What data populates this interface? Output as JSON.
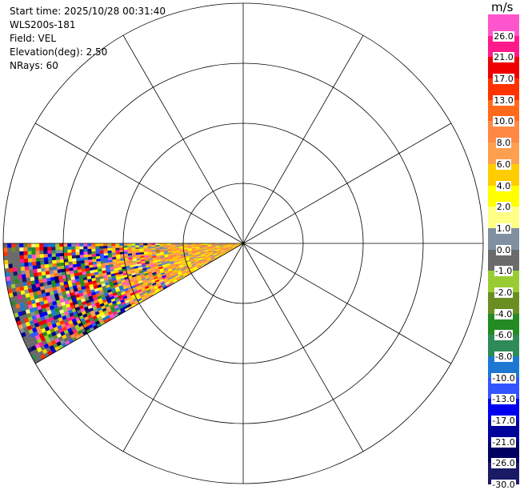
{
  "header": {
    "start_time": "Start time: 2025/10/28 00:31:40",
    "instrument": "WLS200s-181",
    "field": "Field: VEL",
    "elevation": "Elevation(deg): 2.50",
    "nrays": "NRays: 60"
  },
  "colorbar": {
    "unit": "m/s",
    "segments": [
      {
        "label": "26.0",
        "color": "#ff55cc"
      },
      {
        "label": "21.0",
        "color": "#ff1a8c"
      },
      {
        "label": "17.0",
        "color": "#ee0000"
      },
      {
        "label": "13.0",
        "color": "#ff3300"
      },
      {
        "label": "10.0",
        "color": "#ff6a1a"
      },
      {
        "label": "8.0",
        "color": "#ff8844"
      },
      {
        "label": "6.0",
        "color": "#ffa050"
      },
      {
        "label": "4.0",
        "color": "#ffcc00"
      },
      {
        "label": "2.0",
        "color": "#ffff00"
      },
      {
        "label": "1.0",
        "color": "#ffff88"
      },
      {
        "label": "0.0",
        "color": "#8090a0"
      },
      {
        "label": "-1.0",
        "color": "#6b6b6b"
      },
      {
        "label": "-2.0",
        "color": "#99cc33"
      },
      {
        "label": "-4.0",
        "color": "#6b8e23"
      },
      {
        "label": "-6.0",
        "color": "#228b22"
      },
      {
        "label": "-8.0",
        "color": "#2e8b57"
      },
      {
        "label": "-10.0",
        "color": "#1e78d2"
      },
      {
        "label": "-13.0",
        "color": "#3355ff"
      },
      {
        "label": "-17.0",
        "color": "#0000ee"
      },
      {
        "label": "-21.0",
        "color": "#00009a"
      },
      {
        "label": "-26.0",
        "color": "#000060"
      },
      {
        "label": "-30.0",
        "color": "#1a1a66"
      }
    ]
  },
  "chart_data": {
    "type": "radar_ppi",
    "field": "VEL",
    "unit": "m/s",
    "range_rings": 4,
    "radial_spokes_deg": [
      0,
      30,
      60,
      90,
      120,
      150,
      180,
      210,
      240,
      270,
      300,
      330
    ],
    "sector_azimuth_deg": [
      240,
      270
    ],
    "data_description": "Velocity returns confined to the west-southwest sector; near-range values mostly orange/yellow (~2 to 8 m/s), far range noisy mixed colors.",
    "grid": true
  }
}
